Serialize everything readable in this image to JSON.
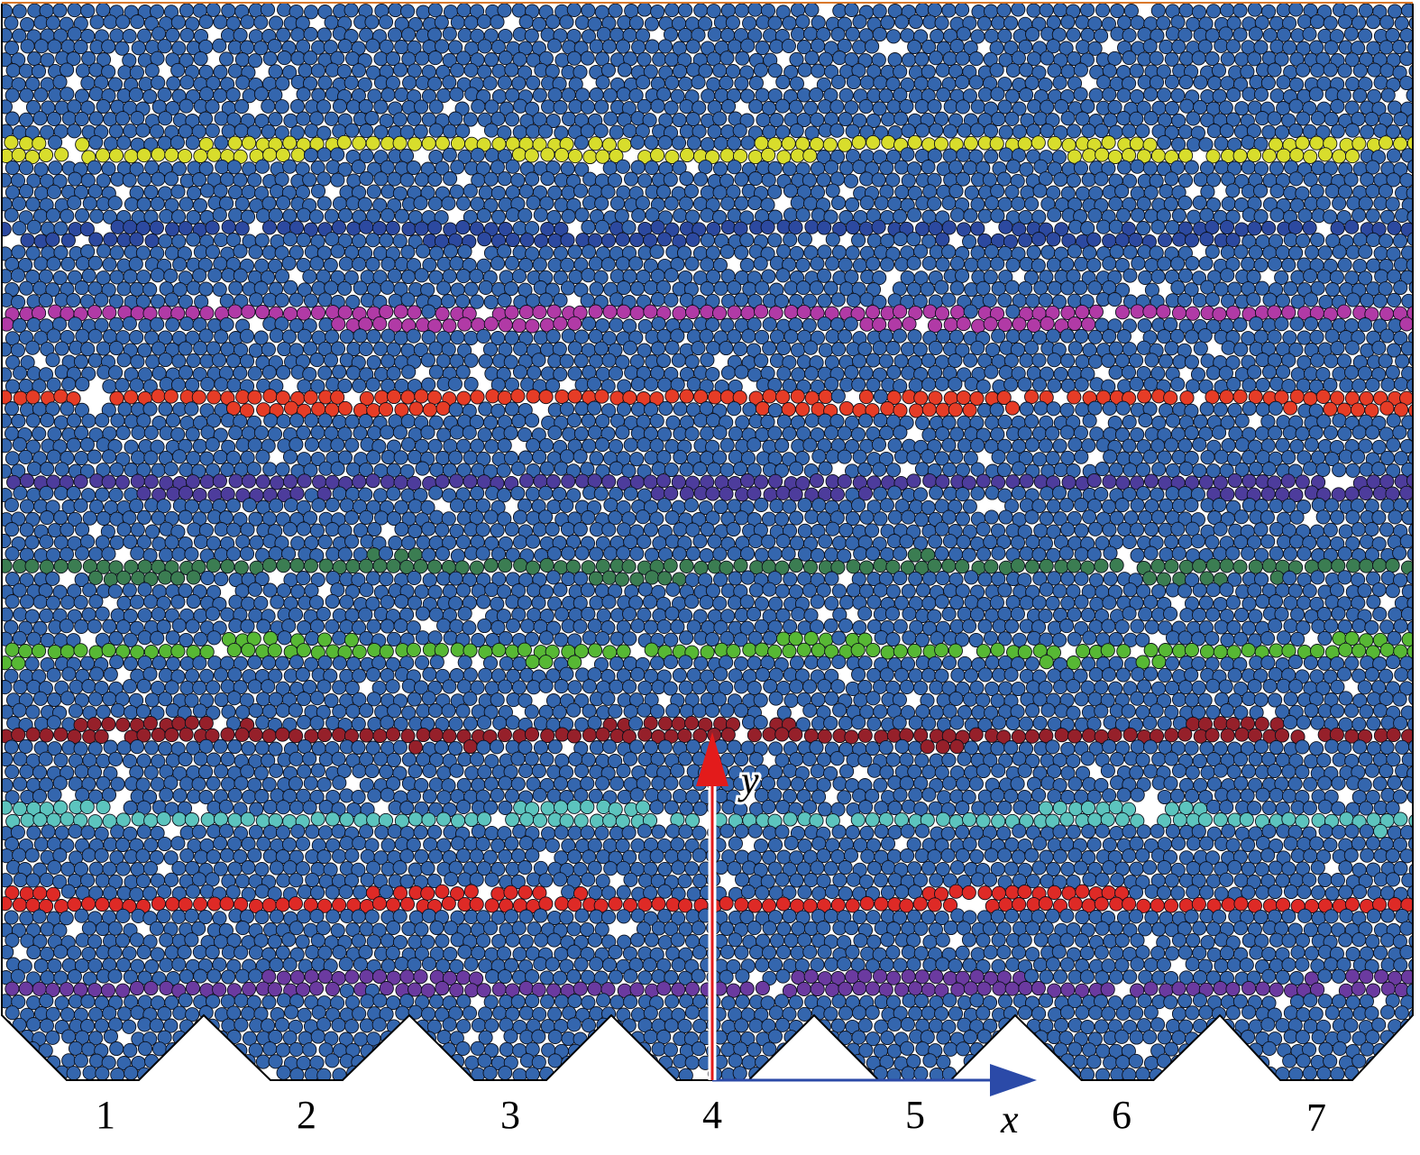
{
  "figure": {
    "outlet_labels": [
      "1",
      "2",
      "3",
      "4",
      "5",
      "6",
      "7"
    ],
    "axis_x_label": "x",
    "axis_y_label": "y"
  },
  "colors": {
    "particle": "#3466ae",
    "particle_outline": "#0b0f1a",
    "void": "#ffffff",
    "wall": "#000000",
    "top_edge": "#d9782b",
    "axis_x": "#2b4aa8",
    "axis_y": "#e31b1b",
    "layers": [
      "#d8dd2c",
      "#2c49a0",
      "#b13aa6",
      "#e63c26",
      "#4d3c9c",
      "#3b7d52",
      "#57b834",
      "#96202a",
      "#5cc4be",
      "#de2a26",
      "#6b3aa0"
    ]
  },
  "icons": {
    "x_axis": "arrow-right-icon",
    "y_axis": "arrow-up-icon"
  }
}
